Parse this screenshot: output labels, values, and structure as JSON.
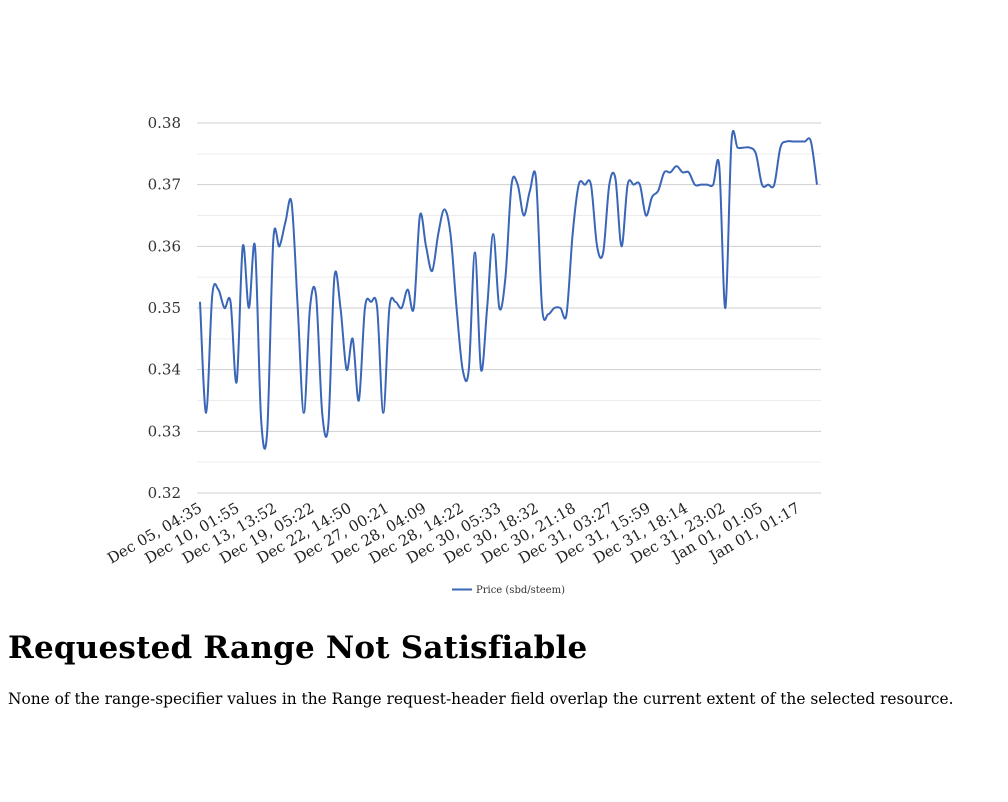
{
  "page": {
    "heading": "Requested Range Not Satisfiable",
    "message": "None of the range-specifier values in the Range request-header field overlap the current extent of the selected resource."
  },
  "chart_data": {
    "type": "line",
    "title": "",
    "xlabel": "",
    "ylabel": "",
    "ylim": [
      0.32,
      0.38
    ],
    "yticks": [
      0.32,
      0.33,
      0.34,
      0.35,
      0.36,
      0.37,
      0.38
    ],
    "ytick_labels": [
      "0.32",
      "0.33",
      "0.34",
      "0.35",
      "0.36",
      "0.37",
      "0.38"
    ],
    "xtick_labels": [
      "Dec 05, 04:35",
      "Dec 10, 01:55",
      "Dec 13, 13:52",
      "Dec 19, 05:22",
      "Dec 22, 14:50",
      "Dec 27, 00:21",
      "Dec 28, 04:09",
      "Dec 28, 14:22",
      "Dec 30, 05:33",
      "Dec 30, 18:32",
      "Dec 30, 21:18",
      "Dec 31, 03:27",
      "Dec 31, 15:59",
      "Dec 31, 18:14",
      "Dec 31, 23:02",
      "Jan 01, 01:05",
      "Jan 01, 01:17"
    ],
    "grid": true,
    "legend_position": "bottom",
    "color": "#3a66b7",
    "series": [
      {
        "name": "Price (sbd/steem)",
        "values": [
          0.351,
          0.333,
          0.352,
          0.353,
          0.35,
          0.351,
          0.338,
          0.36,
          0.35,
          0.36,
          0.332,
          0.33,
          0.361,
          0.36,
          0.364,
          0.367,
          0.35,
          0.333,
          0.35,
          0.352,
          0.333,
          0.331,
          0.355,
          0.35,
          0.34,
          0.345,
          0.335,
          0.35,
          0.351,
          0.35,
          0.333,
          0.35,
          0.351,
          0.35,
          0.353,
          0.35,
          0.365,
          0.36,
          0.356,
          0.362,
          0.366,
          0.362,
          0.35,
          0.34,
          0.34,
          0.359,
          0.34,
          0.35,
          0.362,
          0.35,
          0.355,
          0.37,
          0.37,
          0.365,
          0.369,
          0.371,
          0.35,
          0.349,
          0.35,
          0.35,
          0.349,
          0.362,
          0.37,
          0.37,
          0.37,
          0.36,
          0.359,
          0.37,
          0.371,
          0.36,
          0.37,
          0.37,
          0.37,
          0.365,
          0.368,
          0.369,
          0.372,
          0.372,
          0.373,
          0.372,
          0.372,
          0.37,
          0.37,
          0.37,
          0.37,
          0.373,
          0.35,
          0.377,
          0.376,
          0.376,
          0.376,
          0.375,
          0.37,
          0.37,
          0.37,
          0.376,
          0.377,
          0.377,
          0.377,
          0.377,
          0.377,
          0.37
        ]
      }
    ]
  }
}
